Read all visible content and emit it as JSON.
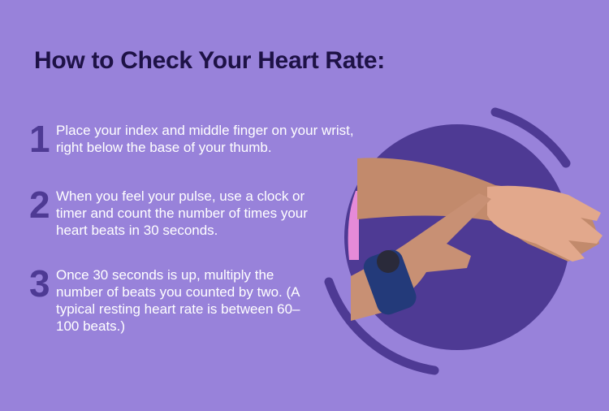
{
  "title": "How to Check Your Heart Rate:",
  "steps": [
    {
      "number": "1",
      "text": "Place your index and middle finger on your wrist, right below the base of your thumb."
    },
    {
      "number": "2",
      "text": "When you feel your pulse, use a clock or timer and count the number of times your heart beats in 30 seconds."
    },
    {
      "number": "3",
      "text": "Once 30 seconds is up, multiply the number of beats you counted by two. (A typical resting heart rate is between 60–100 beats.)"
    }
  ],
  "colors": {
    "background": "#9882da",
    "circle": "#4e3a94",
    "title": "#1e1246",
    "number": "#4e3a94",
    "text": "#ffffff"
  }
}
